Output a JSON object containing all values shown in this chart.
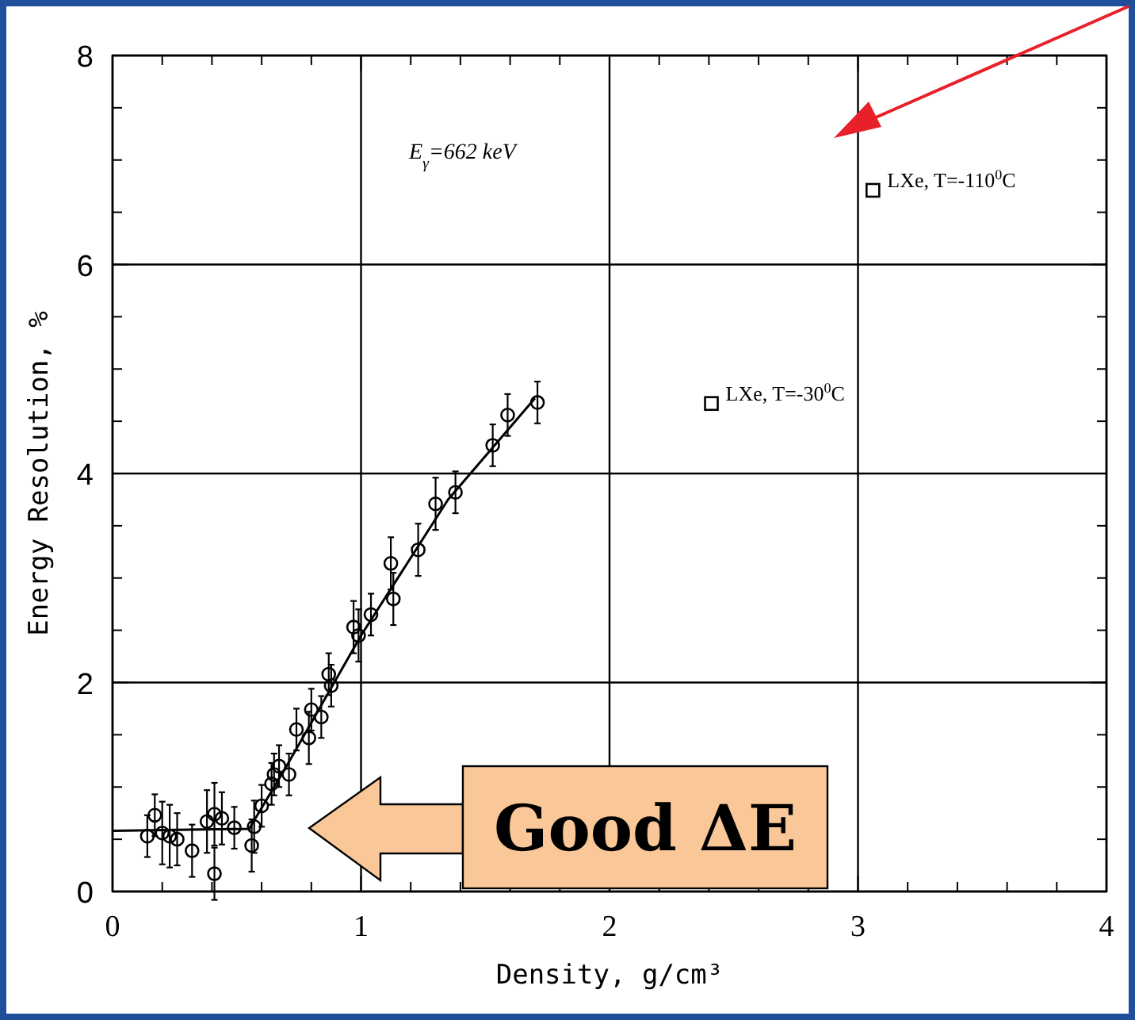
{
  "chart_data": {
    "type": "scatter",
    "xlabel": "Density, g/cm³",
    "ylabel": "Energy Resolution, %",
    "xlim": [
      0,
      4
    ],
    "ylim": [
      0,
      8
    ],
    "xticks": [
      0,
      {
        "value": 0.2,
        "label": null
      },
      {
        "value": 0.4,
        "label": null
      },
      {
        "value": 0.6,
        "label": null
      },
      {
        "value": 0.8,
        "label": null
      },
      1,
      {
        "value": 1.2,
        "label": null
      },
      {
        "value": 1.4,
        "label": null
      },
      {
        "value": 1.6,
        "label": null
      },
      {
        "value": 1.8,
        "label": null
      },
      2,
      {
        "value": 2.2,
        "label": null
      },
      {
        "value": 2.4,
        "label": null
      },
      {
        "value": 2.6,
        "label": null
      },
      {
        "value": 2.8,
        "label": null
      },
      3,
      {
        "value": 3.2,
        "label": null
      },
      {
        "value": 3.4,
        "label": null
      },
      {
        "value": 3.6,
        "label": null
      },
      {
        "value": 3.8,
        "label": null
      },
      4
    ],
    "yticks": [
      0,
      {
        "value": 0.5,
        "label": null
      },
      {
        "value": 1,
        "label": null
      },
      {
        "value": 1.5,
        "label": null
      },
      2,
      {
        "value": 2.5,
        "label": null
      },
      {
        "value": 3,
        "label": null
      },
      {
        "value": 3.5,
        "label": null
      },
      4,
      {
        "value": 4.5,
        "label": null
      },
      {
        "value": 5,
        "label": null
      },
      {
        "value": 5.5,
        "label": null
      },
      6,
      {
        "value": 6.5,
        "label": null
      },
      {
        "value": 7,
        "label": null
      },
      {
        "value": 7.5,
        "label": null
      },
      8
    ],
    "grid": true,
    "series": [
      {
        "color": "#000000",
        "marker": "circle",
        "x": [
          0.14,
          0.17,
          0.2,
          0.23,
          0.26,
          0.32,
          0.38,
          0.41,
          0.41,
          0.44,
          0.49,
          0.56,
          0.57,
          0.6,
          0.64,
          0.65,
          0.67,
          0.71,
          0.74,
          0.79,
          0.8,
          0.84,
          0.87,
          0.88,
          0.97,
          0.99,
          1.04,
          1.12,
          1.13,
          1.23,
          1.3,
          1.38,
          1.53,
          1.59,
          1.71
        ],
        "values": [
          0.53,
          0.73,
          0.56,
          0.53,
          0.5,
          0.39,
          0.67,
          0.17,
          0.74,
          0.7,
          0.61,
          0.44,
          0.62,
          0.82,
          1.03,
          1.12,
          1.2,
          1.12,
          1.55,
          1.47,
          1.74,
          1.67,
          2.08,
          1.97,
          2.53,
          2.45,
          2.65,
          3.14,
          2.8,
          3.27,
          3.71,
          3.82,
          4.27,
          4.56,
          4.68
        ],
        "errors": [
          0.2,
          0.2,
          0.3,
          0.3,
          0.25,
          0.25,
          0.3,
          0.25,
          0.3,
          0.25,
          0.2,
          0.25,
          0.25,
          0.2,
          0.2,
          0.2,
          0.2,
          0.2,
          0.2,
          0.25,
          0.2,
          0.2,
          0.2,
          0.2,
          0.25,
          0.25,
          0.2,
          0.25,
          0.25,
          0.25,
          0.25,
          0.2,
          0.2,
          0.2,
          0.2
        ]
      },
      {
        "type": "line",
        "color": "#000000",
        "marker": "none",
        "line_style": "solid",
        "x": [
          0,
          0.55,
          0.7,
          1.0,
          1.35,
          1.7
        ],
        "values": [
          0.58,
          0.6,
          1.2,
          2.45,
          3.75,
          4.72
        ]
      },
      {
        "name": "LXe, T=-30$^{0}$C",
        "color": "#000000",
        "marker": "square",
        "x": [
          2.41
        ],
        "values": [
          4.67
        ]
      },
      {
        "name": "LXe, T=-110$^{0}$C",
        "color": "#000000",
        "marker": "square",
        "x": [
          3.06
        ],
        "values": [
          6.71
        ]
      }
    ],
    "annotations": [
      "E$_{γ}$=662 keV",
      "Good ΔE"
    ]
  }
}
